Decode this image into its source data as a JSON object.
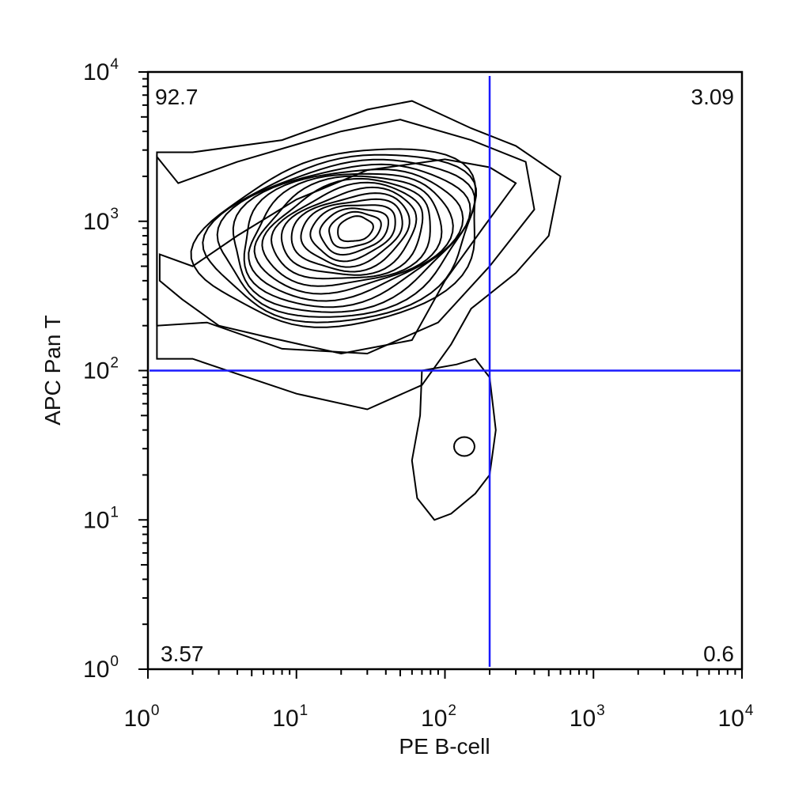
{
  "chart_data": {
    "type": "contour",
    "xlabel": "PE B-cell",
    "ylabel": "APC Pan T",
    "x_scale": "log",
    "y_scale": "log",
    "xlim": [
      1,
      10000
    ],
    "ylim": [
      1,
      10000
    ],
    "x_ticks": [
      {
        "base": "10",
        "exp": "0",
        "value": 1
      },
      {
        "base": "10",
        "exp": "1",
        "value": 10
      },
      {
        "base": "10",
        "exp": "2",
        "value": 100
      },
      {
        "base": "10",
        "exp": "3",
        "value": 1000
      },
      {
        "base": "10",
        "exp": "4",
        "value": 10000
      }
    ],
    "y_ticks": [
      {
        "base": "10",
        "exp": "0",
        "value": 1
      },
      {
        "base": "10",
        "exp": "1",
        "value": 10
      },
      {
        "base": "10",
        "exp": "2",
        "value": 100
      },
      {
        "base": "10",
        "exp": "3",
        "value": 1000
      },
      {
        "base": "10",
        "exp": "4",
        "value": 10000
      }
    ],
    "quadrant_gate": {
      "x": 200,
      "y": 100
    },
    "quadrants": {
      "upper_left": "92.7",
      "upper_right": "3.09",
      "lower_left": "3.57",
      "lower_right": "0.6"
    },
    "population_peak": {
      "x": 25,
      "y": 900
    },
    "grid": false,
    "gate_color": "#1a1aff"
  }
}
